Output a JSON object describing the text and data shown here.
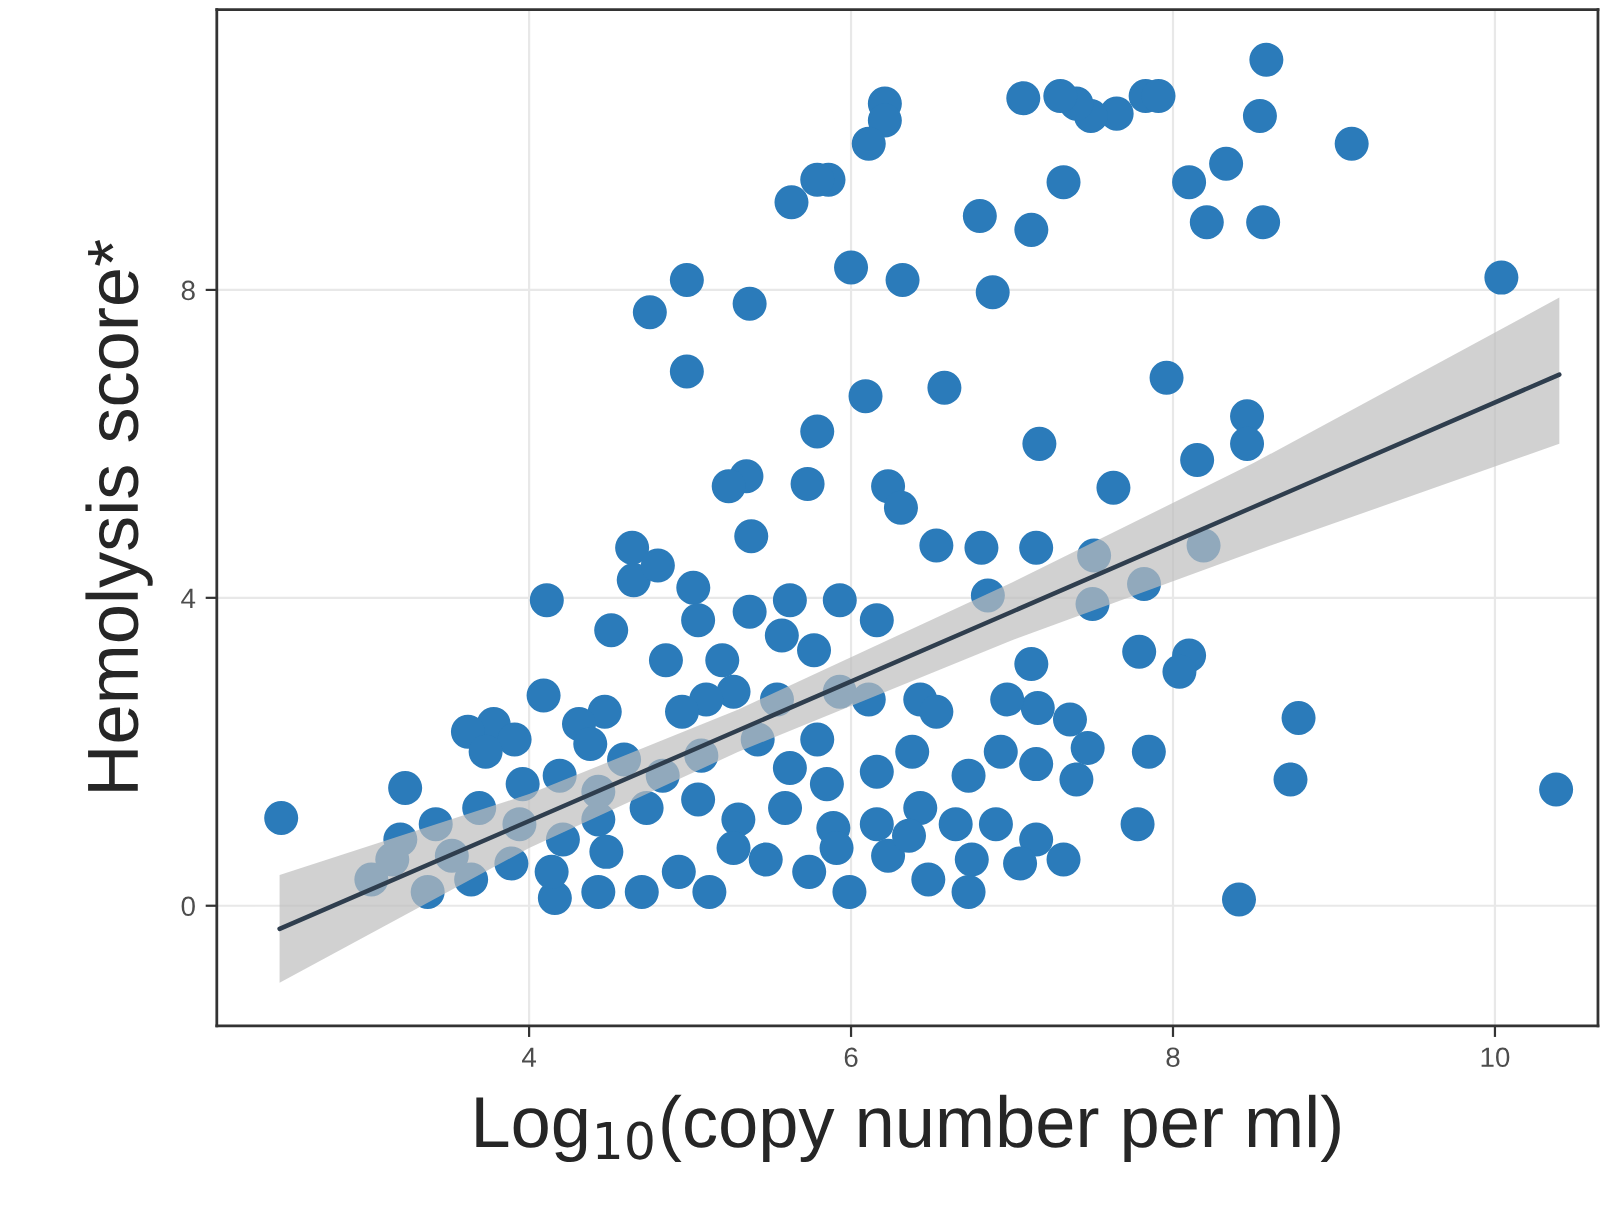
{
  "chart_data": {
    "type": "scatter",
    "xlabel": "Log$_{10}$(copy number per ml)",
    "ylabel": "Hemolysis score*",
    "xlim": [
      2.06,
      10.64
    ],
    "ylim": [
      -1.56,
      11.64
    ],
    "xticks": [
      4,
      6,
      8,
      10
    ],
    "yticks": [
      0,
      4,
      8
    ],
    "grid": true,
    "series": [
      {
        "marker": "circle",
        "color": "#2b7bba",
        "x": [
          7.83,
          6.21,
          6.21,
          6.11,
          5.86,
          5.79,
          5.63,
          4.75,
          4.98,
          5.37,
          4.98,
          6.0,
          6.32,
          6.88,
          6.58,
          9.11,
          8.58,
          8.54,
          8.56,
          8.21,
          8.33,
          8.1,
          7.91,
          7.65,
          7.49,
          7.4,
          7.3,
          7.07,
          7.32,
          6.8,
          7.12,
          10.04,
          7.96,
          8.46,
          8.46,
          8.15,
          7.63,
          7.17,
          5.79,
          6.09,
          6.23,
          6.31,
          5.73,
          5.35,
          5.24,
          5.38,
          6.53,
          7.15,
          6.81,
          7.51,
          8.19,
          7.82,
          7.5,
          4.11,
          4.64,
          4.65,
          4.8,
          5.02,
          5.05,
          5.37,
          5.62,
          5.93,
          6.16,
          6.85,
          4.51,
          4.85,
          5.2,
          5.57,
          5.77,
          7.12,
          7.79,
          8.1,
          8.04,
          7.16,
          7.36,
          6.97,
          6.43,
          6.53,
          5.93,
          6.11,
          5.27,
          5.54,
          5.1,
          4.95,
          4.47,
          4.09,
          4.31,
          3.78,
          3.62,
          3.91,
          3.73,
          4.38,
          4.59,
          8.78,
          8.73,
          7.85,
          7.47,
          7.78,
          7.32,
          8.41,
          10.38,
          7.15,
          6.93,
          6.73,
          6.38,
          6.16,
          5.85,
          5.62,
          5.42,
          5.79,
          5.07,
          4.83,
          4.73,
          5.05,
          5.3,
          5.59,
          5.89,
          6.16,
          6.43,
          6.65,
          6.9,
          7.15,
          7.05,
          6.75,
          6.48,
          6.23,
          5.99,
          5.74,
          5.47,
          5.12,
          4.93,
          4.7,
          4.43,
          4.16,
          4.14,
          3.89,
          3.64,
          3.37,
          3.15,
          3.02,
          3.2,
          3.42,
          3.69,
          3.94,
          4.21,
          4.43,
          4.43,
          4.19,
          3.96,
          3.23,
          3.52,
          4.48,
          6.73,
          5.27,
          5.91,
          6.36,
          7.4,
          2.46
        ],
        "values": [
          10.52,
          10.42,
          10.2,
          9.9,
          9.43,
          9.43,
          9.14,
          7.71,
          8.13,
          7.82,
          6.94,
          8.29,
          8.13,
          7.97,
          6.73,
          9.9,
          10.99,
          10.26,
          8.88,
          8.88,
          9.64,
          9.4,
          10.52,
          10.29,
          10.26,
          10.42,
          10.52,
          10.49,
          9.4,
          8.96,
          8.78,
          8.16,
          6.86,
          6.36,
          6.0,
          5.79,
          5.43,
          6.0,
          6.16,
          6.62,
          5.45,
          5.17,
          5.48,
          5.58,
          5.45,
          4.8,
          4.68,
          4.65,
          4.65,
          4.55,
          4.68,
          4.18,
          3.92,
          3.97,
          4.65,
          4.23,
          4.42,
          4.13,
          3.71,
          3.82,
          3.97,
          3.97,
          3.71,
          4.03,
          3.58,
          3.19,
          3.19,
          3.51,
          3.32,
          3.14,
          3.3,
          3.25,
          3.04,
          2.57,
          2.42,
          2.68,
          2.68,
          2.52,
          2.78,
          2.68,
          2.78,
          2.68,
          2.68,
          2.52,
          2.52,
          2.73,
          2.36,
          2.36,
          2.26,
          2.16,
          2.0,
          2.1,
          1.9,
          2.44,
          1.64,
          2.0,
          2.05,
          1.06,
          0.6,
          0.08,
          1.51,
          1.84,
          2.0,
          1.69,
          2.0,
          1.74,
          1.58,
          1.79,
          2.16,
          2.16,
          1.95,
          1.69,
          1.27,
          1.38,
          1.12,
          1.27,
          1.01,
          1.06,
          1.27,
          1.06,
          1.06,
          0.86,
          0.55,
          0.6,
          0.34,
          0.65,
          0.18,
          0.44,
          0.6,
          0.18,
          0.44,
          0.18,
          0.18,
          0.1,
          0.44,
          0.55,
          0.34,
          0.18,
          0.6,
          0.34,
          0.86,
          1.06,
          1.27,
          1.06,
          0.86,
          1.12,
          1.48,
          1.69,
          1.58,
          1.53,
          0.65,
          0.7,
          0.18,
          0.75,
          0.75,
          0.91,
          1.64,
          1.14
        ]
      },
      {
        "type": "line",
        "color": "#2f3e4e",
        "x": [
          2.45,
          4,
          5.3,
          7,
          8.5,
          10.4
        ],
        "values": [
          -0.3,
          1.1,
          2.28,
          3.82,
          5.18,
          6.9
        ],
        "lower": [
          -1.0,
          0.75,
          2.0,
          3.45,
          4.6,
          6.0
        ],
        "upper": [
          0.4,
          1.45,
          2.55,
          4.2,
          5.75,
          7.9
        ]
      }
    ]
  }
}
